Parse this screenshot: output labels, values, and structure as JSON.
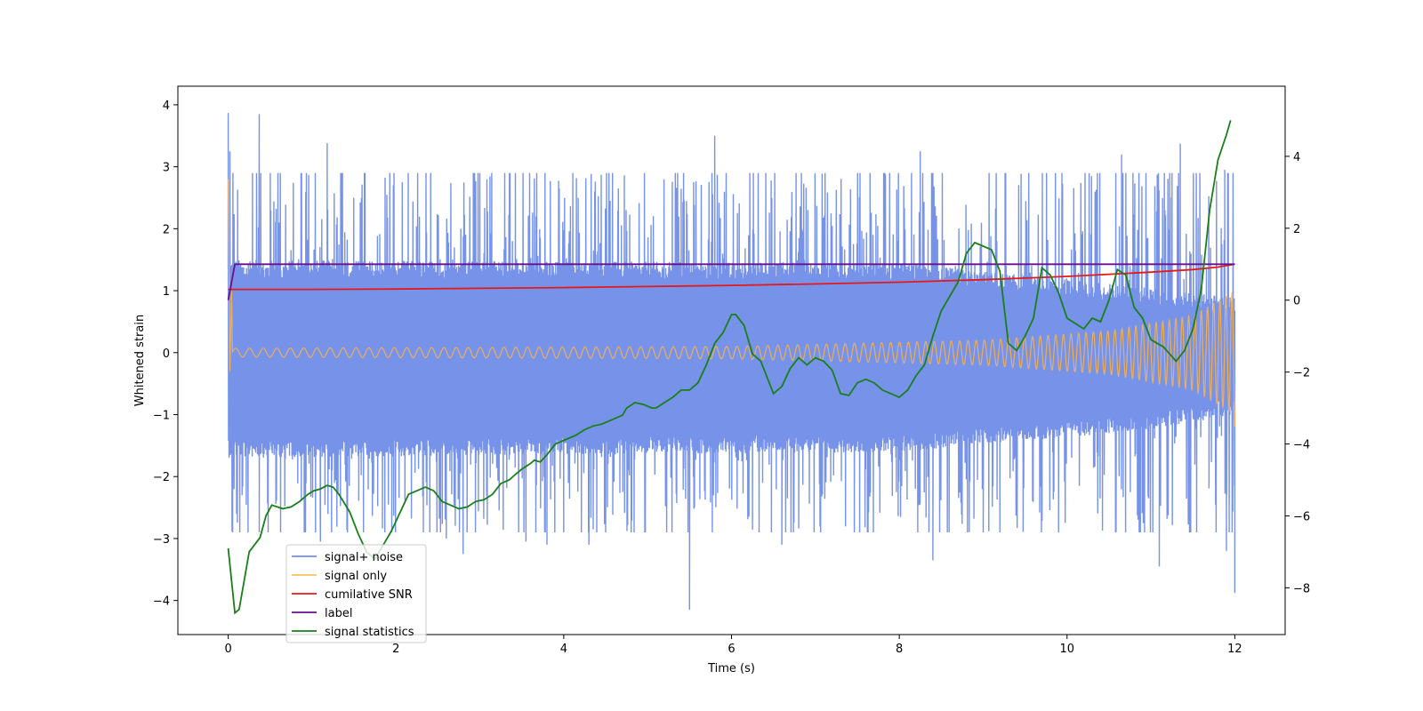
{
  "chart_data": {
    "type": "line",
    "title": "",
    "xlabel": "Time (s)",
    "ylabel": "Whitened strain",
    "y2label": "",
    "xlim": [
      -0.6,
      12.6
    ],
    "ylim": [
      -4.55,
      4.3
    ],
    "y2lim": [
      -9.3,
      5.95
    ],
    "xticks": [
      "0",
      "2",
      "4",
      "6",
      "8",
      "10",
      "12"
    ],
    "yticks": [
      "−4",
      "−3",
      "−2",
      "−1",
      "0",
      "1",
      "2",
      "3",
      "4"
    ],
    "y2ticks": [
      "−8",
      "−6",
      "−4",
      "−2",
      "0",
      "2",
      "4"
    ],
    "grid": false,
    "legend_position": "lower-left",
    "series": [
      {
        "name": "signal+ noise",
        "axis": "left",
        "color": "#4169e1",
        "kind": "noisy_band",
        "x_range": [
          0,
          12
        ],
        "band_inner": [
          [
            0,
            -1.5,
            1.3
          ],
          [
            8,
            -1.4,
            1.25
          ],
          [
            11,
            -1.05,
            0.85
          ],
          [
            12,
            -0.8,
            0.7
          ]
        ],
        "band_outer": [
          -2.7,
          2.7
        ],
        "spikes": [
          [
            0.0,
            3.87
          ],
          [
            0.01,
            -1.65
          ],
          [
            0.02,
            3.25
          ],
          [
            0.07,
            -2.2
          ],
          [
            0.1,
            -2.6
          ],
          [
            0.37,
            3.85
          ],
          [
            1.18,
            3.38
          ],
          [
            1.1,
            -3.05
          ],
          [
            1.95,
            -2.9
          ],
          [
            2.6,
            -3.0
          ],
          [
            2.8,
            -3.25
          ],
          [
            3.55,
            -3.05
          ],
          [
            3.8,
            -3.1
          ],
          [
            4.3,
            -3.1
          ],
          [
            5.5,
            -4.15
          ],
          [
            5.8,
            3.5
          ],
          [
            6.6,
            -3.1
          ],
          [
            8.25,
            3.25
          ],
          [
            8.4,
            -3.35
          ],
          [
            9.0,
            -2.9
          ],
          [
            9.2,
            -2.9
          ],
          [
            10.65,
            3.2
          ],
          [
            11.1,
            -3.45
          ],
          [
            11.35,
            3.37
          ],
          [
            11.9,
            -3.2
          ],
          [
            11.88,
            2.95
          ],
          [
            12.0,
            -3.88
          ]
        ]
      },
      {
        "name": "signal only",
        "axis": "left",
        "color": "#ffb347",
        "kind": "chirp",
        "x_range": [
          0,
          12
        ],
        "amplitude": [
          [
            0,
            0.07
          ],
          [
            6,
            0.1
          ],
          [
            9,
            0.2
          ],
          [
            10.5,
            0.35
          ],
          [
            11.5,
            0.6
          ],
          [
            12,
            1.0
          ]
        ],
        "frequency": [
          [
            0,
            6
          ],
          [
            6,
            8
          ],
          [
            10,
            11
          ],
          [
            12,
            14
          ]
        ],
        "spike_start": [
          [
            0,
            2.8
          ],
          [
            0.02,
            -0.3
          ],
          [
            0.04,
            1.0
          ]
        ]
      },
      {
        "name": "cumilative SNR",
        "axis": "right",
        "color": "#e31a1c",
        "x": [
          0.0,
          0.05,
          1,
          2,
          3,
          4,
          5,
          6,
          7,
          8,
          9,
          10,
          10.5,
          11,
          11.5,
          11.8,
          12
        ],
        "y": [
          0.3,
          0.3,
          0.3,
          0.31,
          0.33,
          0.35,
          0.38,
          0.41,
          0.45,
          0.5,
          0.57,
          0.66,
          0.72,
          0.78,
          0.85,
          0.92,
          1.0
        ]
      },
      {
        "name": "label",
        "axis": "right",
        "color": "#6a0f8e",
        "x": [
          0.0,
          0.08,
          12
        ],
        "y": [
          0.0,
          1.0,
          1.0
        ]
      },
      {
        "name": "signal statistics",
        "axis": "right",
        "color": "#1a7f1a",
        "x": [
          0.0,
          0.08,
          0.13,
          0.25,
          0.38,
          0.45,
          0.52,
          0.65,
          0.75,
          0.85,
          0.95,
          1.02,
          1.1,
          1.18,
          1.25,
          1.32,
          1.45,
          1.55,
          1.65,
          1.75,
          1.85,
          1.95,
          2.05,
          2.15,
          2.25,
          2.35,
          2.45,
          2.55,
          2.65,
          2.75,
          2.85,
          2.95,
          3.05,
          3.15,
          3.25,
          3.35,
          3.42,
          3.5,
          3.6,
          3.65,
          3.72,
          3.8,
          3.9,
          4.0,
          4.1,
          4.15,
          4.25,
          4.35,
          4.45,
          4.5,
          4.6,
          4.7,
          4.75,
          4.85,
          4.95,
          5.05,
          5.1,
          5.2,
          5.3,
          5.4,
          5.5,
          5.6,
          5.7,
          5.8,
          5.9,
          6.0,
          6.05,
          6.15,
          6.25,
          6.35,
          6.5,
          6.6,
          6.7,
          6.8,
          6.9,
          7.0,
          7.1,
          7.2,
          7.3,
          7.4,
          7.5,
          7.6,
          7.7,
          7.8,
          7.9,
          8.0,
          8.1,
          8.2,
          8.3,
          8.4,
          8.5,
          8.6,
          8.7,
          8.8,
          8.9,
          9.0,
          9.1,
          9.2,
          9.3,
          9.4,
          9.5,
          9.6,
          9.7,
          9.8,
          9.9,
          10.0,
          10.2,
          10.3,
          10.4,
          10.5,
          10.6,
          10.7,
          10.8,
          10.9,
          11.0,
          11.15,
          11.3,
          11.4,
          11.5,
          11.6,
          11.7,
          11.8,
          11.9,
          11.95
        ],
        "y": [
          -6.9,
          -8.7,
          -8.6,
          -7.0,
          -6.6,
          -6.0,
          -5.7,
          -5.8,
          -5.75,
          -5.6,
          -5.4,
          -5.3,
          -5.25,
          -5.15,
          -5.2,
          -5.4,
          -5.9,
          -6.5,
          -7.0,
          -7.2,
          -6.8,
          -6.4,
          -5.9,
          -5.4,
          -5.3,
          -5.2,
          -5.3,
          -5.6,
          -5.7,
          -5.8,
          -5.75,
          -5.6,
          -5.55,
          -5.4,
          -5.1,
          -5.0,
          -4.85,
          -4.7,
          -4.55,
          -4.45,
          -4.5,
          -4.3,
          -4.0,
          -3.9,
          -3.8,
          -3.75,
          -3.6,
          -3.5,
          -3.45,
          -3.4,
          -3.3,
          -3.2,
          -3.0,
          -2.85,
          -2.9,
          -3.0,
          -3.0,
          -2.85,
          -2.7,
          -2.5,
          -2.5,
          -2.3,
          -1.8,
          -1.2,
          -0.9,
          -0.4,
          -0.4,
          -0.7,
          -1.5,
          -1.7,
          -2.6,
          -2.4,
          -1.9,
          -1.6,
          -1.8,
          -1.6,
          -1.7,
          -1.95,
          -2.6,
          -2.65,
          -2.3,
          -2.2,
          -2.3,
          -2.5,
          -2.6,
          -2.7,
          -2.5,
          -2.1,
          -1.8,
          -1.0,
          -0.3,
          0.1,
          0.5,
          1.3,
          1.6,
          1.5,
          1.4,
          0.8,
          -1.2,
          -1.4,
          -1.0,
          -0.5,
          0.9,
          0.7,
          0.2,
          -0.5,
          -0.8,
          -0.5,
          -0.6,
          0.0,
          0.85,
          0.7,
          -0.2,
          -0.5,
          -1.1,
          -1.3,
          -1.7,
          -1.4,
          -0.8,
          0.3,
          2.5,
          3.9,
          4.6,
          5.0
        ]
      }
    ]
  }
}
